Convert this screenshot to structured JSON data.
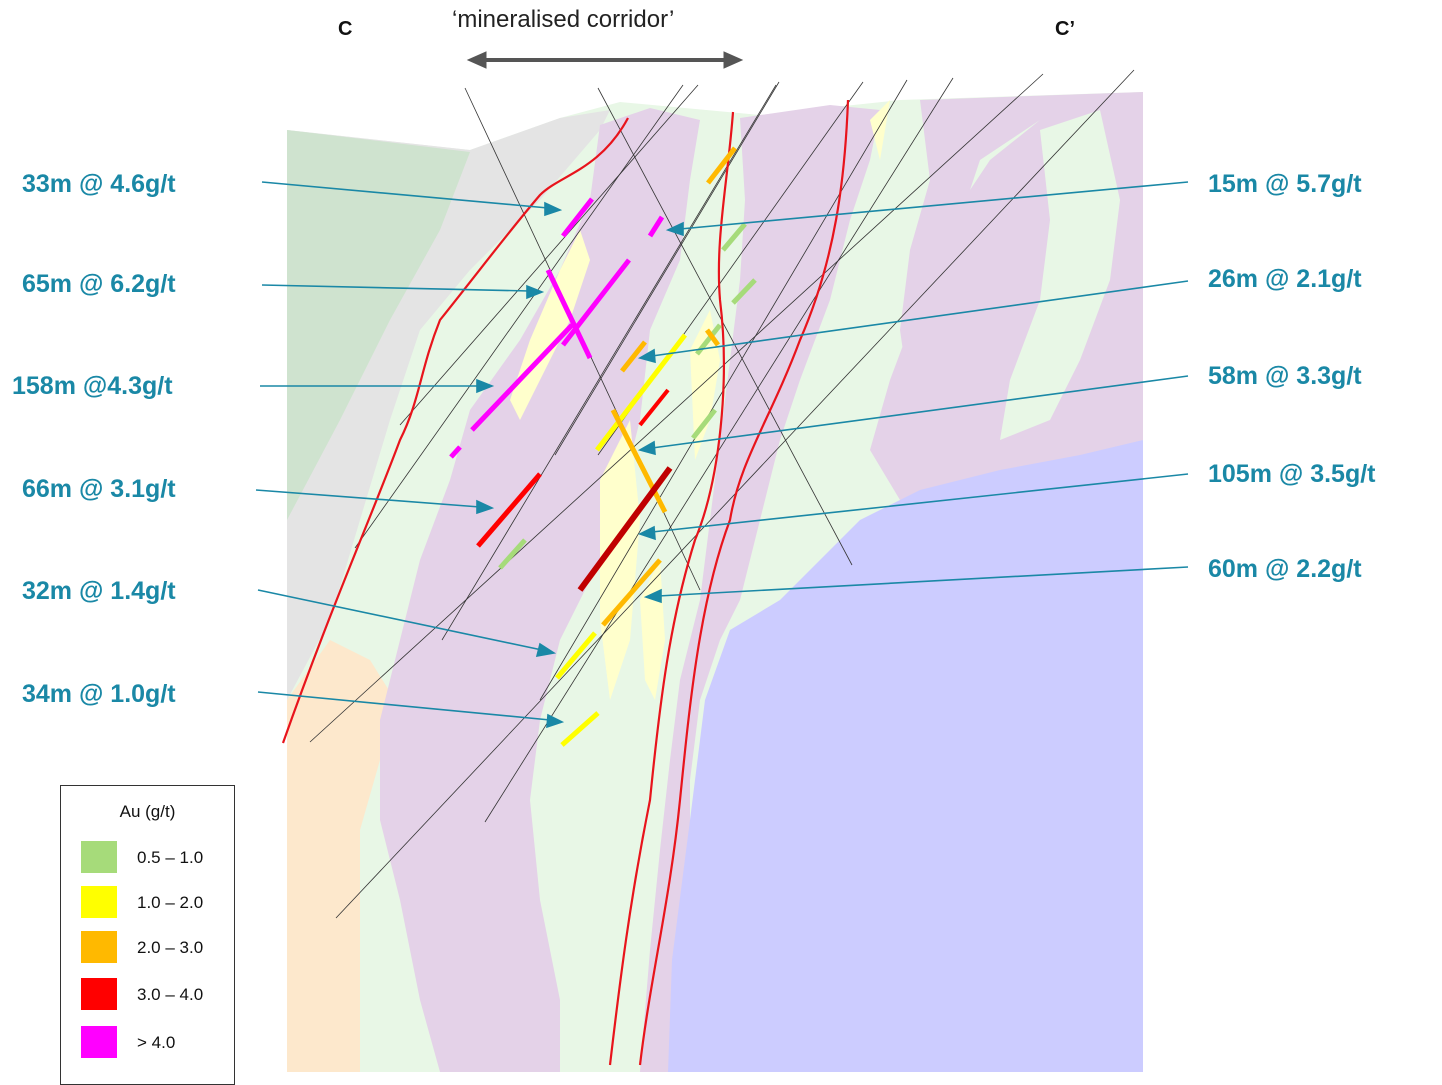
{
  "section": {
    "left_label": "C",
    "right_label": "C’",
    "corridor_label": "‘mineralised corridor’"
  },
  "intercepts_left": [
    {
      "text": "33m @ 4.6g/t"
    },
    {
      "text": "65m @ 6.2g/t"
    },
    {
      "text": "158m @4.3g/t"
    },
    {
      "text": "66m @ 3.1g/t"
    },
    {
      "text": "32m @ 1.4g/t"
    },
    {
      "text": "34m @ 1.0g/t"
    }
  ],
  "intercepts_right": [
    {
      "text": "15m @ 5.7g/t"
    },
    {
      "text": "26m @ 2.1g/t"
    },
    {
      "text": "58m @ 3.3g/t"
    },
    {
      "text": "105m @ 3.5g/t"
    },
    {
      "text": "60m @ 2.2g/t"
    }
  ],
  "legend": {
    "title": "Au (g/t)",
    "items": [
      {
        "label": "0.5 – 1.0",
        "color": "#a6db7a"
      },
      {
        "label": "1.0 – 2.0",
        "color": "#ffff00"
      },
      {
        "label": "2.0 – 3.0",
        "color": "#ffb900"
      },
      {
        "label": "3.0 – 4.0",
        "color": "#ff0000"
      },
      {
        "label": "> 4.0",
        "color": "#ff00ff"
      }
    ]
  },
  "colors": {
    "label": "#1a88a6",
    "fault": "#e8141c",
    "granite": "#ccccff",
    "purple_unit": "#e4d2e8",
    "light_green_unit": "#e8f7e6",
    "grey_unit": "#e4e4e4",
    "green_unit": "#cfe3cf",
    "beige_unit": "#fde8cc"
  }
}
